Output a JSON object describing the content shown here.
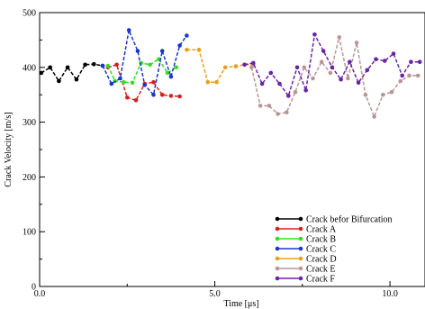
{
  "chart_data": {
    "type": "line",
    "xlabel": "Time [μs]",
    "ylabel": "Crack Velocity [m/s]",
    "xlim": [
      0,
      11
    ],
    "ylim": [
      0,
      500
    ],
    "xticks": [
      0,
      5,
      10
    ],
    "xtick_labels": [
      "0.0",
      "5.0",
      "10.0"
    ],
    "yticks": [
      0,
      100,
      200,
      300,
      400,
      500
    ],
    "ytick_labels": [
      "0",
      "100",
      "200",
      "300",
      "400",
      "500"
    ],
    "legend_position": "bottom-right",
    "series": [
      {
        "name": "Crack befor Bifurcation",
        "color": "#000000",
        "x": [
          0.05,
          0.3,
          0.55,
          0.8,
          1.05,
          1.3,
          1.55,
          1.8
        ],
        "y": [
          390,
          400,
          375,
          400,
          378,
          405,
          406,
          403
        ]
      },
      {
        "name": "Crack A",
        "color": "#d62020",
        "x": [
          1.95,
          2.2,
          2.5,
          2.75,
          3.0,
          3.25,
          3.5,
          3.75,
          4.0
        ],
        "y": [
          400,
          405,
          345,
          340,
          370,
          373,
          350,
          348,
          347
        ]
      },
      {
        "name": "Crack B",
        "color": "#33dd22",
        "x": [
          1.95,
          2.15,
          2.4,
          2.65,
          2.9,
          3.15,
          3.4,
          3.65,
          3.9
        ],
        "y": [
          403,
          375,
          373,
          372,
          408,
          405,
          415,
          390,
          400
        ]
      },
      {
        "name": "Crack C",
        "color": "#1a35cc",
        "x": [
          1.8,
          2.05,
          2.3,
          2.55,
          2.8,
          3.0,
          3.25,
          3.5,
          3.75,
          4.0,
          4.2
        ],
        "y": [
          403,
          370,
          380,
          468,
          430,
          368,
          350,
          430,
          383,
          440,
          458
        ]
      },
      {
        "name": "Crack D",
        "color": "#e6a01a",
        "x": [
          4.2,
          4.55,
          4.8,
          5.05,
          5.3,
          5.6,
          5.85,
          6.1
        ],
        "y": [
          432,
          432,
          373,
          373,
          400,
          402,
          405,
          405
        ]
      },
      {
        "name": "Crack E",
        "color": "#b89696",
        "x": [
          6.05,
          6.3,
          6.55,
          6.8,
          7.05,
          7.3,
          7.55,
          7.8,
          8.05,
          8.3,
          8.55,
          8.8,
          9.05,
          9.3,
          9.55,
          9.8,
          10.05,
          10.3,
          10.55,
          10.8
        ],
        "y": [
          400,
          330,
          330,
          315,
          318,
          355,
          400,
          380,
          410,
          390,
          455,
          380,
          445,
          350,
          310,
          350,
          355,
          375,
          385,
          385
        ]
      },
      {
        "name": "Crack F",
        "color": "#6a22a8",
        "x": [
          5.85,
          6.1,
          6.35,
          6.6,
          6.85,
          7.1,
          7.35,
          7.6,
          7.85,
          8.1,
          8.35,
          8.6,
          8.85,
          9.1,
          9.35,
          9.6,
          9.85,
          10.1,
          10.35,
          10.6,
          10.85
        ],
        "y": [
          405,
          408,
          370,
          390,
          370,
          348,
          400,
          358,
          460,
          430,
          400,
          378,
          410,
          372,
          395,
          415,
          412,
          425,
          385,
          410,
          410
        ]
      }
    ]
  }
}
